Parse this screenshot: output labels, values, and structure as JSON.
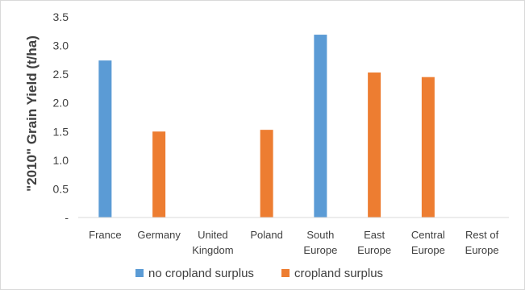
{
  "chart_data": {
    "type": "bar",
    "title": "",
    "xlabel": "",
    "ylabel": "\"2010\" Grain Yield (t/ha)",
    "ylim": [
      0,
      3.5
    ],
    "yticks": [
      {
        "value": 0,
        "label": "-"
      },
      {
        "value": 0.5,
        "label": "0.5"
      },
      {
        "value": 1.0,
        "label": "1.0"
      },
      {
        "value": 1.5,
        "label": "1.5"
      },
      {
        "value": 2.0,
        "label": "2.0"
      },
      {
        "value": 2.5,
        "label": "2.5"
      },
      {
        "value": 3.0,
        "label": "3.0"
      },
      {
        "value": 3.5,
        "label": "3.5"
      }
    ],
    "categories": [
      [
        "France"
      ],
      [
        "Germany"
      ],
      [
        "United",
        "Kingdom"
      ],
      [
        "Poland"
      ],
      [
        "South",
        "Europe"
      ],
      [
        "East",
        "Europe"
      ],
      [
        "Central",
        "Europe"
      ],
      [
        "Rest of",
        "Europe"
      ]
    ],
    "series": [
      {
        "name": "no  cropland surplus",
        "color": "#5b9bd5",
        "values": [
          2.74,
          null,
          null,
          null,
          3.19,
          null,
          null,
          null
        ]
      },
      {
        "name": "cropland surplus",
        "color": "#ed7d31",
        "values": [
          null,
          1.5,
          null,
          1.53,
          null,
          2.53,
          2.45,
          null
        ]
      }
    ],
    "grid": false,
    "legend_position": "bottom"
  }
}
